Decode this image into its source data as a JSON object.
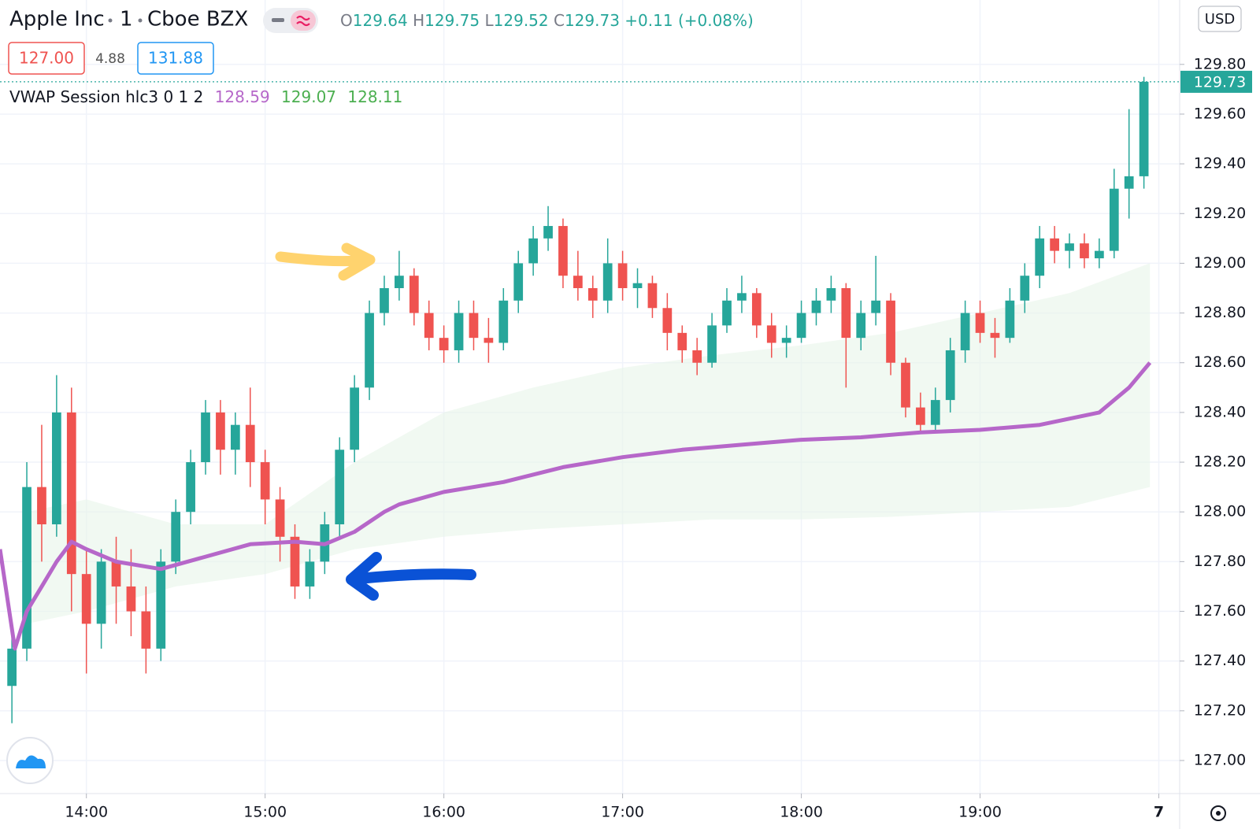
{
  "header": {
    "symbol": "Apple Inc",
    "interval": "1",
    "exchange": "Cboe BZX",
    "ohlc": [
      {
        "label": "O",
        "value": "129.64"
      },
      {
        "label": "H",
        "value": "129.75"
      },
      {
        "label": "L",
        "value": "129.52"
      },
      {
        "label": "C",
        "value": "129.73"
      }
    ],
    "change": "+0.11 (+0.08%)",
    "bid": "127.00",
    "spread": "4.88",
    "ask": "131.88"
  },
  "indicator": {
    "label": "VWAP Session hlc3 0 1 2",
    "values": [
      "128.59",
      "129.07",
      "128.11"
    ]
  },
  "currency": "USD",
  "chart_data": {
    "type": "candlestick",
    "x": [
      "13:35",
      "13:40",
      "13:45",
      "13:50",
      "13:55",
      "14:00",
      "14:05",
      "14:10",
      "14:15",
      "14:20",
      "14:25",
      "14:30",
      "14:35",
      "14:40",
      "14:45",
      "14:50",
      "14:55",
      "15:00",
      "15:05",
      "15:10",
      "15:15",
      "15:20",
      "15:25",
      "15:30",
      "15:35",
      "15:40",
      "15:45",
      "15:50",
      "15:55",
      "16:00",
      "16:05",
      "16:10",
      "16:15",
      "16:20",
      "16:25",
      "16:30",
      "16:35",
      "16:40",
      "16:45",
      "16:50",
      "16:55",
      "17:00",
      "17:05",
      "17:10",
      "17:15",
      "17:20",
      "17:25",
      "17:30",
      "17:35",
      "17:40",
      "17:45",
      "17:50",
      "17:55",
      "18:00",
      "18:05",
      "18:10",
      "18:15",
      "18:20",
      "18:25",
      "18:30",
      "18:35",
      "18:40",
      "18:45",
      "18:50",
      "18:55",
      "19:00",
      "19:05",
      "19:10",
      "19:15",
      "19:20",
      "19:25",
      "19:30",
      "19:35",
      "19:40",
      "19:45",
      "19:50",
      "19:55"
    ],
    "open": [
      127.3,
      127.45,
      128.1,
      127.95,
      128.4,
      127.75,
      127.55,
      127.8,
      127.7,
      127.6,
      127.45,
      127.8,
      128.0,
      128.2,
      128.4,
      128.25,
      128.35,
      128.2,
      128.05,
      127.9,
      127.7,
      127.8,
      127.95,
      128.25,
      128.5,
      128.8,
      128.9,
      128.95,
      128.8,
      128.7,
      128.65,
      128.8,
      128.7,
      128.68,
      128.85,
      129.0,
      129.1,
      129.15,
      128.95,
      128.9,
      128.85,
      129.0,
      128.9,
      128.92,
      128.82,
      128.72,
      128.65,
      128.6,
      128.75,
      128.85,
      128.88,
      128.75,
      128.68,
      128.7,
      128.8,
      128.85,
      128.9,
      128.7,
      128.8,
      128.85,
      128.6,
      128.42,
      128.35,
      128.45,
      128.65,
      128.8,
      128.72,
      128.7,
      128.85,
      128.95,
      129.1,
      129.05,
      129.08,
      129.02,
      129.05,
      129.3,
      129.35
    ],
    "high": [
      127.55,
      128.2,
      128.35,
      128.55,
      128.5,
      127.85,
      127.85,
      127.9,
      127.85,
      127.7,
      127.85,
      128.05,
      128.25,
      128.45,
      128.45,
      128.4,
      128.5,
      128.25,
      128.1,
      127.95,
      127.85,
      128.0,
      128.3,
      128.55,
      128.85,
      128.95,
      129.05,
      128.98,
      128.85,
      128.75,
      128.85,
      128.85,
      128.78,
      128.9,
      129.05,
      129.15,
      129.23,
      129.18,
      129.05,
      128.95,
      129.1,
      129.05,
      128.98,
      128.95,
      128.88,
      128.75,
      128.7,
      128.8,
      128.9,
      128.95,
      128.9,
      128.8,
      128.75,
      128.85,
      128.9,
      128.95,
      128.92,
      128.85,
      129.03,
      128.88,
      128.62,
      128.48,
      128.5,
      128.7,
      128.85,
      128.85,
      128.78,
      128.9,
      129.0,
      129.15,
      129.15,
      129.12,
      129.12,
      129.1,
      129.38,
      129.62,
      129.75
    ],
    "low": [
      127.15,
      127.4,
      127.8,
      127.9,
      127.6,
      127.35,
      127.45,
      127.55,
      127.5,
      127.35,
      127.4,
      127.75,
      127.95,
      128.15,
      128.15,
      128.15,
      128.1,
      127.95,
      127.8,
      127.65,
      127.65,
      127.75,
      127.9,
      128.2,
      128.45,
      128.75,
      128.85,
      128.75,
      128.65,
      128.6,
      128.6,
      128.65,
      128.6,
      128.65,
      128.8,
      128.95,
      129.05,
      128.9,
      128.85,
      128.78,
      128.8,
      128.85,
      128.82,
      128.78,
      128.65,
      128.6,
      128.55,
      128.58,
      128.72,
      128.8,
      128.7,
      128.62,
      128.62,
      128.68,
      128.75,
      128.8,
      128.5,
      128.65,
      128.75,
      128.55,
      128.38,
      128.32,
      128.33,
      128.4,
      128.6,
      128.68,
      128.62,
      128.68,
      128.8,
      128.9,
      129.0,
      128.98,
      128.98,
      128.98,
      129.02,
      129.18,
      129.3
    ],
    "close": [
      127.45,
      128.1,
      127.95,
      128.4,
      127.75,
      127.55,
      127.8,
      127.7,
      127.6,
      127.45,
      127.8,
      128.0,
      128.2,
      128.4,
      128.25,
      128.35,
      128.2,
      128.05,
      127.9,
      127.7,
      127.8,
      127.95,
      128.25,
      128.5,
      128.8,
      128.9,
      128.95,
      128.8,
      128.7,
      128.65,
      128.8,
      128.7,
      128.68,
      128.85,
      129.0,
      129.1,
      129.15,
      128.95,
      128.9,
      128.85,
      129.0,
      128.9,
      128.92,
      128.82,
      128.72,
      128.65,
      128.6,
      128.75,
      128.85,
      128.88,
      128.75,
      128.68,
      128.7,
      128.8,
      128.85,
      128.9,
      128.7,
      128.8,
      128.85,
      128.6,
      128.42,
      128.35,
      128.45,
      128.65,
      128.8,
      128.72,
      128.7,
      128.85,
      128.95,
      129.1,
      129.05,
      129.08,
      129.02,
      129.05,
      129.3,
      129.35,
      129.73
    ],
    "up_color": "#26a69a",
    "down_color": "#ef5350",
    "vwap": {
      "color": "#b667c9",
      "x": [
        "13:31",
        "13:36",
        "13:40",
        "13:45",
        "13:50",
        "13:55",
        "14:00",
        "14:10",
        "14:25",
        "14:40",
        "14:55",
        "15:10",
        "15:20",
        "15:30",
        "15:40",
        "15:45",
        "16:00",
        "16:20",
        "16:40",
        "17:00",
        "17:20",
        "17:40",
        "18:00",
        "18:20",
        "18:40",
        "19:00",
        "19:20",
        "19:40",
        "19:50",
        "19:57"
      ],
      "values": [
        127.85,
        127.45,
        127.6,
        127.7,
        127.8,
        127.88,
        127.85,
        127.8,
        127.77,
        127.82,
        127.87,
        127.88,
        127.87,
        127.92,
        128.0,
        128.03,
        128.08,
        128.12,
        128.18,
        128.22,
        128.25,
        128.27,
        128.29,
        128.3,
        128.32,
        128.33,
        128.35,
        128.4,
        128.5,
        128.6
      ]
    },
    "band": {
      "color": "#e8f5e9",
      "x": [
        "13:40",
        "14:00",
        "14:30",
        "15:00",
        "15:30",
        "16:00",
        "16:30",
        "17:00",
        "17:30",
        "18:00",
        "18:30",
        "19:00",
        "19:30",
        "19:57"
      ],
      "upper": [
        128.0,
        128.05,
        127.95,
        127.95,
        128.2,
        128.4,
        128.5,
        128.58,
        128.63,
        128.67,
        128.72,
        128.8,
        128.88,
        129.0
      ],
      "lower": [
        127.55,
        127.6,
        127.7,
        127.75,
        127.85,
        127.9,
        127.93,
        127.95,
        127.97,
        127.97,
        127.98,
        128.0,
        128.02,
        128.1
      ]
    },
    "last_price": 129.73,
    "last_price_label": "129.73",
    "last_price_color": "#26a69a",
    "ylim": [
      126.867,
      130.059
    ],
    "yticks": [
      {
        "value": 127.0,
        "label": "127.00"
      },
      {
        "value": 127.2,
        "label": "127.20"
      },
      {
        "value": 127.4,
        "label": "127.40"
      },
      {
        "value": 127.6,
        "label": "127.60"
      },
      {
        "value": 127.8,
        "label": "127.80"
      },
      {
        "value": 128.0,
        "label": "128.00"
      },
      {
        "value": 128.2,
        "label": "128.20"
      },
      {
        "value": 128.4,
        "label": "128.40"
      },
      {
        "value": 128.6,
        "label": "128.60"
      },
      {
        "value": 128.8,
        "label": "128.80"
      },
      {
        "value": 129.0,
        "label": "129.00"
      },
      {
        "value": 129.2,
        "label": "129.20"
      },
      {
        "value": 129.4,
        "label": "129.40"
      },
      {
        "value": 129.6,
        "label": "129.60"
      },
      {
        "value": 129.8,
        "label": "129.80"
      }
    ],
    "xlim": [
      "13:31",
      "20:07"
    ],
    "xticks": [
      "14:00",
      "15:00",
      "16:00",
      "17:00",
      "18:00",
      "19:00",
      {
        "value": "20:00",
        "label": "7"
      }
    ],
    "grid": true
  }
}
